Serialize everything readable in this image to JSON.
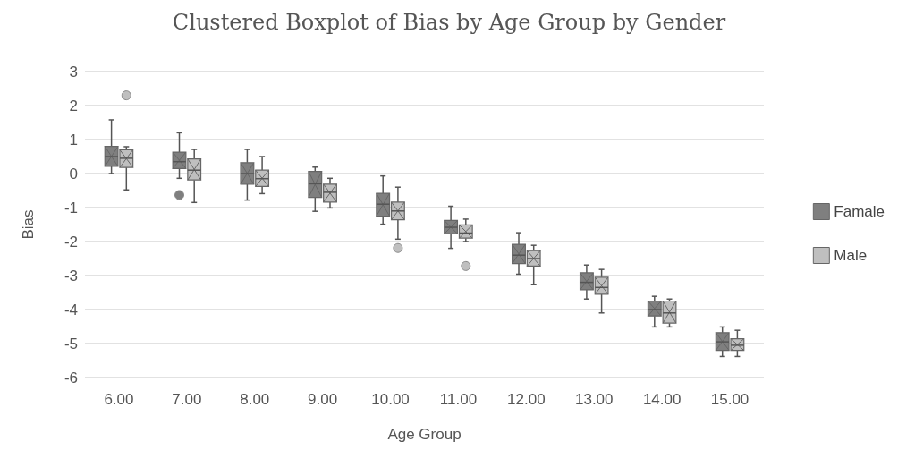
{
  "chart_data": {
    "type": "box",
    "title": "Clustered Boxplot of Bias by Age Group by Gender",
    "xlabel": "Age Group",
    "ylabel": "Bias",
    "categories": [
      "6.00",
      "7.00",
      "8.00",
      "9.00",
      "10.00",
      "11.00",
      "12.00",
      "13.00",
      "14.00",
      "15.00"
    ],
    "ylim": [
      -6,
      3
    ],
    "yticks": [
      -6,
      -5,
      -4,
      -3,
      -2,
      -1,
      0,
      1,
      2,
      3
    ],
    "grid": "y",
    "legend": "right",
    "series": [
      {
        "name": "Famale",
        "color": "#7f7f7f",
        "boxes": [
          {
            "low": 0.0,
            "q1": 0.21,
            "median": 0.5,
            "q3": 0.8,
            "high": 1.58
          },
          {
            "low": -0.14,
            "q1": 0.15,
            "median": 0.35,
            "q3": 0.63,
            "high": 1.2,
            "outliers": [
              -0.63
            ]
          },
          {
            "low": -0.78,
            "q1": -0.31,
            "median": 0.0,
            "q3": 0.32,
            "high": 0.71
          },
          {
            "low": -1.11,
            "q1": -0.7,
            "median": -0.3,
            "q3": 0.06,
            "high": 0.19
          },
          {
            "low": -1.49,
            "q1": -1.25,
            "median": -0.9,
            "q3": -0.58,
            "high": -0.07
          },
          {
            "low": -2.2,
            "q1": -1.77,
            "median": -1.58,
            "q3": -1.38,
            "high": -0.96
          },
          {
            "low": -2.96,
            "q1": -2.65,
            "median": -2.4,
            "q3": -2.08,
            "high": -1.74
          },
          {
            "low": -3.69,
            "q1": -3.42,
            "median": -3.2,
            "q3": -2.92,
            "high": -2.69
          },
          {
            "low": -4.51,
            "q1": -4.19,
            "median": -4.0,
            "q3": -3.75,
            "high": -3.61
          },
          {
            "low": -5.38,
            "q1": -5.2,
            "median": -4.95,
            "q3": -4.68,
            "high": -4.51
          }
        ]
      },
      {
        "name": "Male",
        "color": "#bfbfbf",
        "boxes": [
          {
            "low": -0.48,
            "q1": 0.18,
            "median": 0.45,
            "q3": 0.7,
            "high": 0.79,
            "outliers": [
              2.3
            ]
          },
          {
            "low": -0.85,
            "q1": -0.19,
            "median": 0.1,
            "q3": 0.43,
            "high": 0.71
          },
          {
            "low": -0.59,
            "q1": -0.38,
            "median": -0.15,
            "q3": 0.1,
            "high": 0.5
          },
          {
            "low": -1.01,
            "q1": -0.84,
            "median": -0.55,
            "q3": -0.31,
            "high": -0.14
          },
          {
            "low": -1.93,
            "q1": -1.36,
            "median": -1.1,
            "q3": -0.84,
            "high": -0.4,
            "outliers": [
              -2.19
            ]
          },
          {
            "low": -2.0,
            "q1": -1.9,
            "median": -1.75,
            "q3": -1.51,
            "high": -1.34,
            "outliers": [
              -2.72
            ]
          },
          {
            "low": -3.27,
            "q1": -2.72,
            "median": -2.5,
            "q3": -2.27,
            "high": -2.11
          },
          {
            "low": -4.1,
            "q1": -3.55,
            "median": -3.35,
            "q3": -3.05,
            "high": -2.82
          },
          {
            "low": -4.51,
            "q1": -4.4,
            "median": -4.1,
            "q3": -3.75,
            "high": -3.69
          },
          {
            "low": -5.38,
            "q1": -5.2,
            "median": -5.05,
            "q3": -4.86,
            "high": -4.61
          }
        ]
      }
    ]
  }
}
